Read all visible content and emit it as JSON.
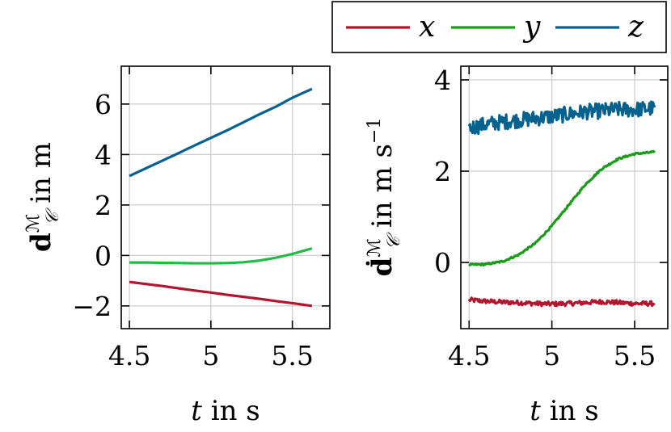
{
  "legend": {
    "entries": [
      {
        "name": "x",
        "color": "#b2162f"
      },
      {
        "name": "y",
        "color": "#1a9c1a"
      },
      {
        "name": "z",
        "color": "#05628f"
      }
    ],
    "placement": "top-right"
  },
  "chart_data": [
    {
      "type": "line",
      "xlabel": "t in s",
      "ylabel": "d_C^M in m",
      "xlim": [
        4.45,
        5.73
      ],
      "ylim": [
        -2.9,
        7.5
      ],
      "xticks": [
        4.5,
        5,
        5.5
      ],
      "xtick_labels": [
        "4.5",
        "5",
        "5.5"
      ],
      "yticks": [
        -2,
        0,
        2,
        4,
        6
      ],
      "ytick_labels": [
        "−2",
        "0",
        "2",
        "4",
        "6"
      ],
      "grid": true,
      "series": [
        {
          "name": "x",
          "color": "#b2162f",
          "x": [
            4.5,
            4.6,
            4.7,
            4.8,
            4.9,
            5.0,
            5.1,
            5.2,
            5.3,
            5.4,
            5.5,
            5.62
          ],
          "y": [
            -1.05,
            -1.13,
            -1.21,
            -1.3,
            -1.39,
            -1.47,
            -1.56,
            -1.64,
            -1.72,
            -1.81,
            -1.89,
            -2.0
          ]
        },
        {
          "name": "y",
          "color": "#22bb44",
          "x": [
            4.5,
            4.6,
            4.7,
            4.8,
            4.9,
            5.0,
            5.1,
            5.2,
            5.3,
            5.4,
            5.5,
            5.62
          ],
          "y": [
            -0.28,
            -0.28,
            -0.29,
            -0.3,
            -0.31,
            -0.31,
            -0.3,
            -0.27,
            -0.2,
            -0.09,
            0.06,
            0.28
          ]
        },
        {
          "name": "z",
          "color": "#05628f",
          "x": [
            4.5,
            4.6,
            4.7,
            4.8,
            4.9,
            5.0,
            5.1,
            5.2,
            5.3,
            5.4,
            5.5,
            5.62
          ],
          "y": [
            3.15,
            3.45,
            3.75,
            4.05,
            4.36,
            4.66,
            4.96,
            5.28,
            5.6,
            5.9,
            6.25,
            6.6
          ]
        }
      ]
    },
    {
      "type": "line",
      "xlabel": "t in s",
      "ylabel": "ḋ_C^M in m s^-1",
      "xlim": [
        4.45,
        5.7
      ],
      "ylim": [
        -1.45,
        4.3
      ],
      "xticks": [
        4.5,
        5,
        5.5
      ],
      "xtick_labels": [
        "4.5",
        "5",
        "5.5"
      ],
      "yticks": [
        0,
        2,
        4
      ],
      "ytick_labels": [
        "0",
        "2",
        "4"
      ],
      "grid": true,
      "series": [
        {
          "name": "x",
          "color": "#b2162f",
          "x": [
            4.5,
            4.6,
            4.7,
            4.8,
            4.9,
            5.0,
            5.1,
            5.2,
            5.3,
            5.4,
            5.5,
            5.62
          ],
          "y": [
            -0.82,
            -0.85,
            -0.87,
            -0.88,
            -0.9,
            -0.91,
            -0.9,
            -0.88,
            -0.86,
            -0.88,
            -0.9,
            -0.9
          ],
          "noise": 0.05
        },
        {
          "name": "y",
          "color": "#1a9c1a",
          "x": [
            4.5,
            4.6,
            4.7,
            4.8,
            4.9,
            5.0,
            5.1,
            5.2,
            5.3,
            5.4,
            5.5,
            5.62
          ],
          "y": [
            -0.05,
            -0.04,
            0.02,
            0.17,
            0.42,
            0.8,
            1.25,
            1.7,
            2.05,
            2.27,
            2.38,
            2.42
          ],
          "noise": 0.02
        },
        {
          "name": "z",
          "color": "#05628f",
          "x": [
            4.5,
            4.6,
            4.7,
            4.8,
            4.9,
            5.0,
            5.1,
            5.2,
            5.3,
            5.4,
            5.5,
            5.62
          ],
          "y": [
            2.95,
            3.02,
            3.08,
            3.12,
            3.16,
            3.2,
            3.25,
            3.3,
            3.32,
            3.35,
            3.35,
            3.38
          ],
          "noise": 0.17
        }
      ]
    }
  ]
}
